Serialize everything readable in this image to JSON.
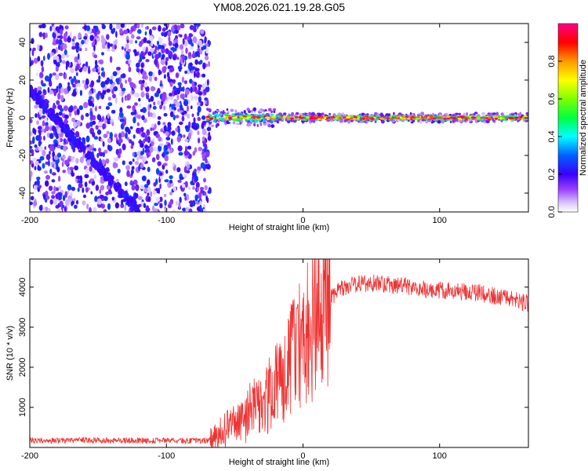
{
  "title": "YM08.2026.021.19.28.G05",
  "chart_data": [
    {
      "type": "heatmap",
      "xlabel": "Height of straight line (km)",
      "ylabel": "Frequency (Hz)",
      "xlim": [
        -200,
        165
      ],
      "ylim": [
        -50,
        50
      ],
      "xticks": [
        -200,
        -100,
        0,
        100
      ],
      "yticks": [
        -40,
        -20,
        0,
        20,
        40
      ],
      "colorbar": {
        "label": "Normalized spectral amplitude",
        "range": [
          0,
          1
        ],
        "ticks": [
          0.0,
          0.2,
          0.4,
          0.6,
          0.8
        ],
        "colors": [
          "#ffffff",
          "#c8a8ff",
          "#8800ff",
          "#0000ff",
          "#00ffff",
          "#00ff00",
          "#ffff00",
          "#ff8800",
          "#ff0000",
          "#ff0088"
        ]
      },
      "features": {
        "noise_region_x": [
          -200,
          -68
        ],
        "noise_amplitude_max": 0.25,
        "descending_track": {
          "x_start": -200,
          "f_start": 15,
          "x_end": -120,
          "f_end": -50
        },
        "signal_line": {
          "x_start": -70,
          "x_end": 165,
          "frequency": 0,
          "amplitude": 0.9
        }
      }
    },
    {
      "type": "line",
      "xlabel": "Height of straight line (km)",
      "ylabel": "SNR (10 * v/v)",
      "xlim": [
        -200,
        165
      ],
      "ylim": [
        0,
        4700
      ],
      "xticks": [
        -200,
        -100,
        0,
        100
      ],
      "yticks": [
        1000,
        2000,
        3000,
        4000
      ],
      "series": [
        {
          "name": "SNR",
          "color": "#ee3333",
          "x": [
            -200,
            -150,
            -100,
            -70,
            -65,
            -55,
            -45,
            -35,
            -25,
            -15,
            -5,
            5,
            15,
            25,
            35,
            50,
            70,
            90,
            110,
            130,
            150,
            165
          ],
          "y": [
            170,
            180,
            170,
            170,
            220,
            450,
            700,
            1000,
            1300,
            1800,
            2400,
            3000,
            3500,
            3900,
            4050,
            4100,
            4050,
            3950,
            3900,
            3850,
            3700,
            3600
          ]
        }
      ]
    }
  ],
  "icons": {
    "colorbar": "colorbar-gradient"
  }
}
